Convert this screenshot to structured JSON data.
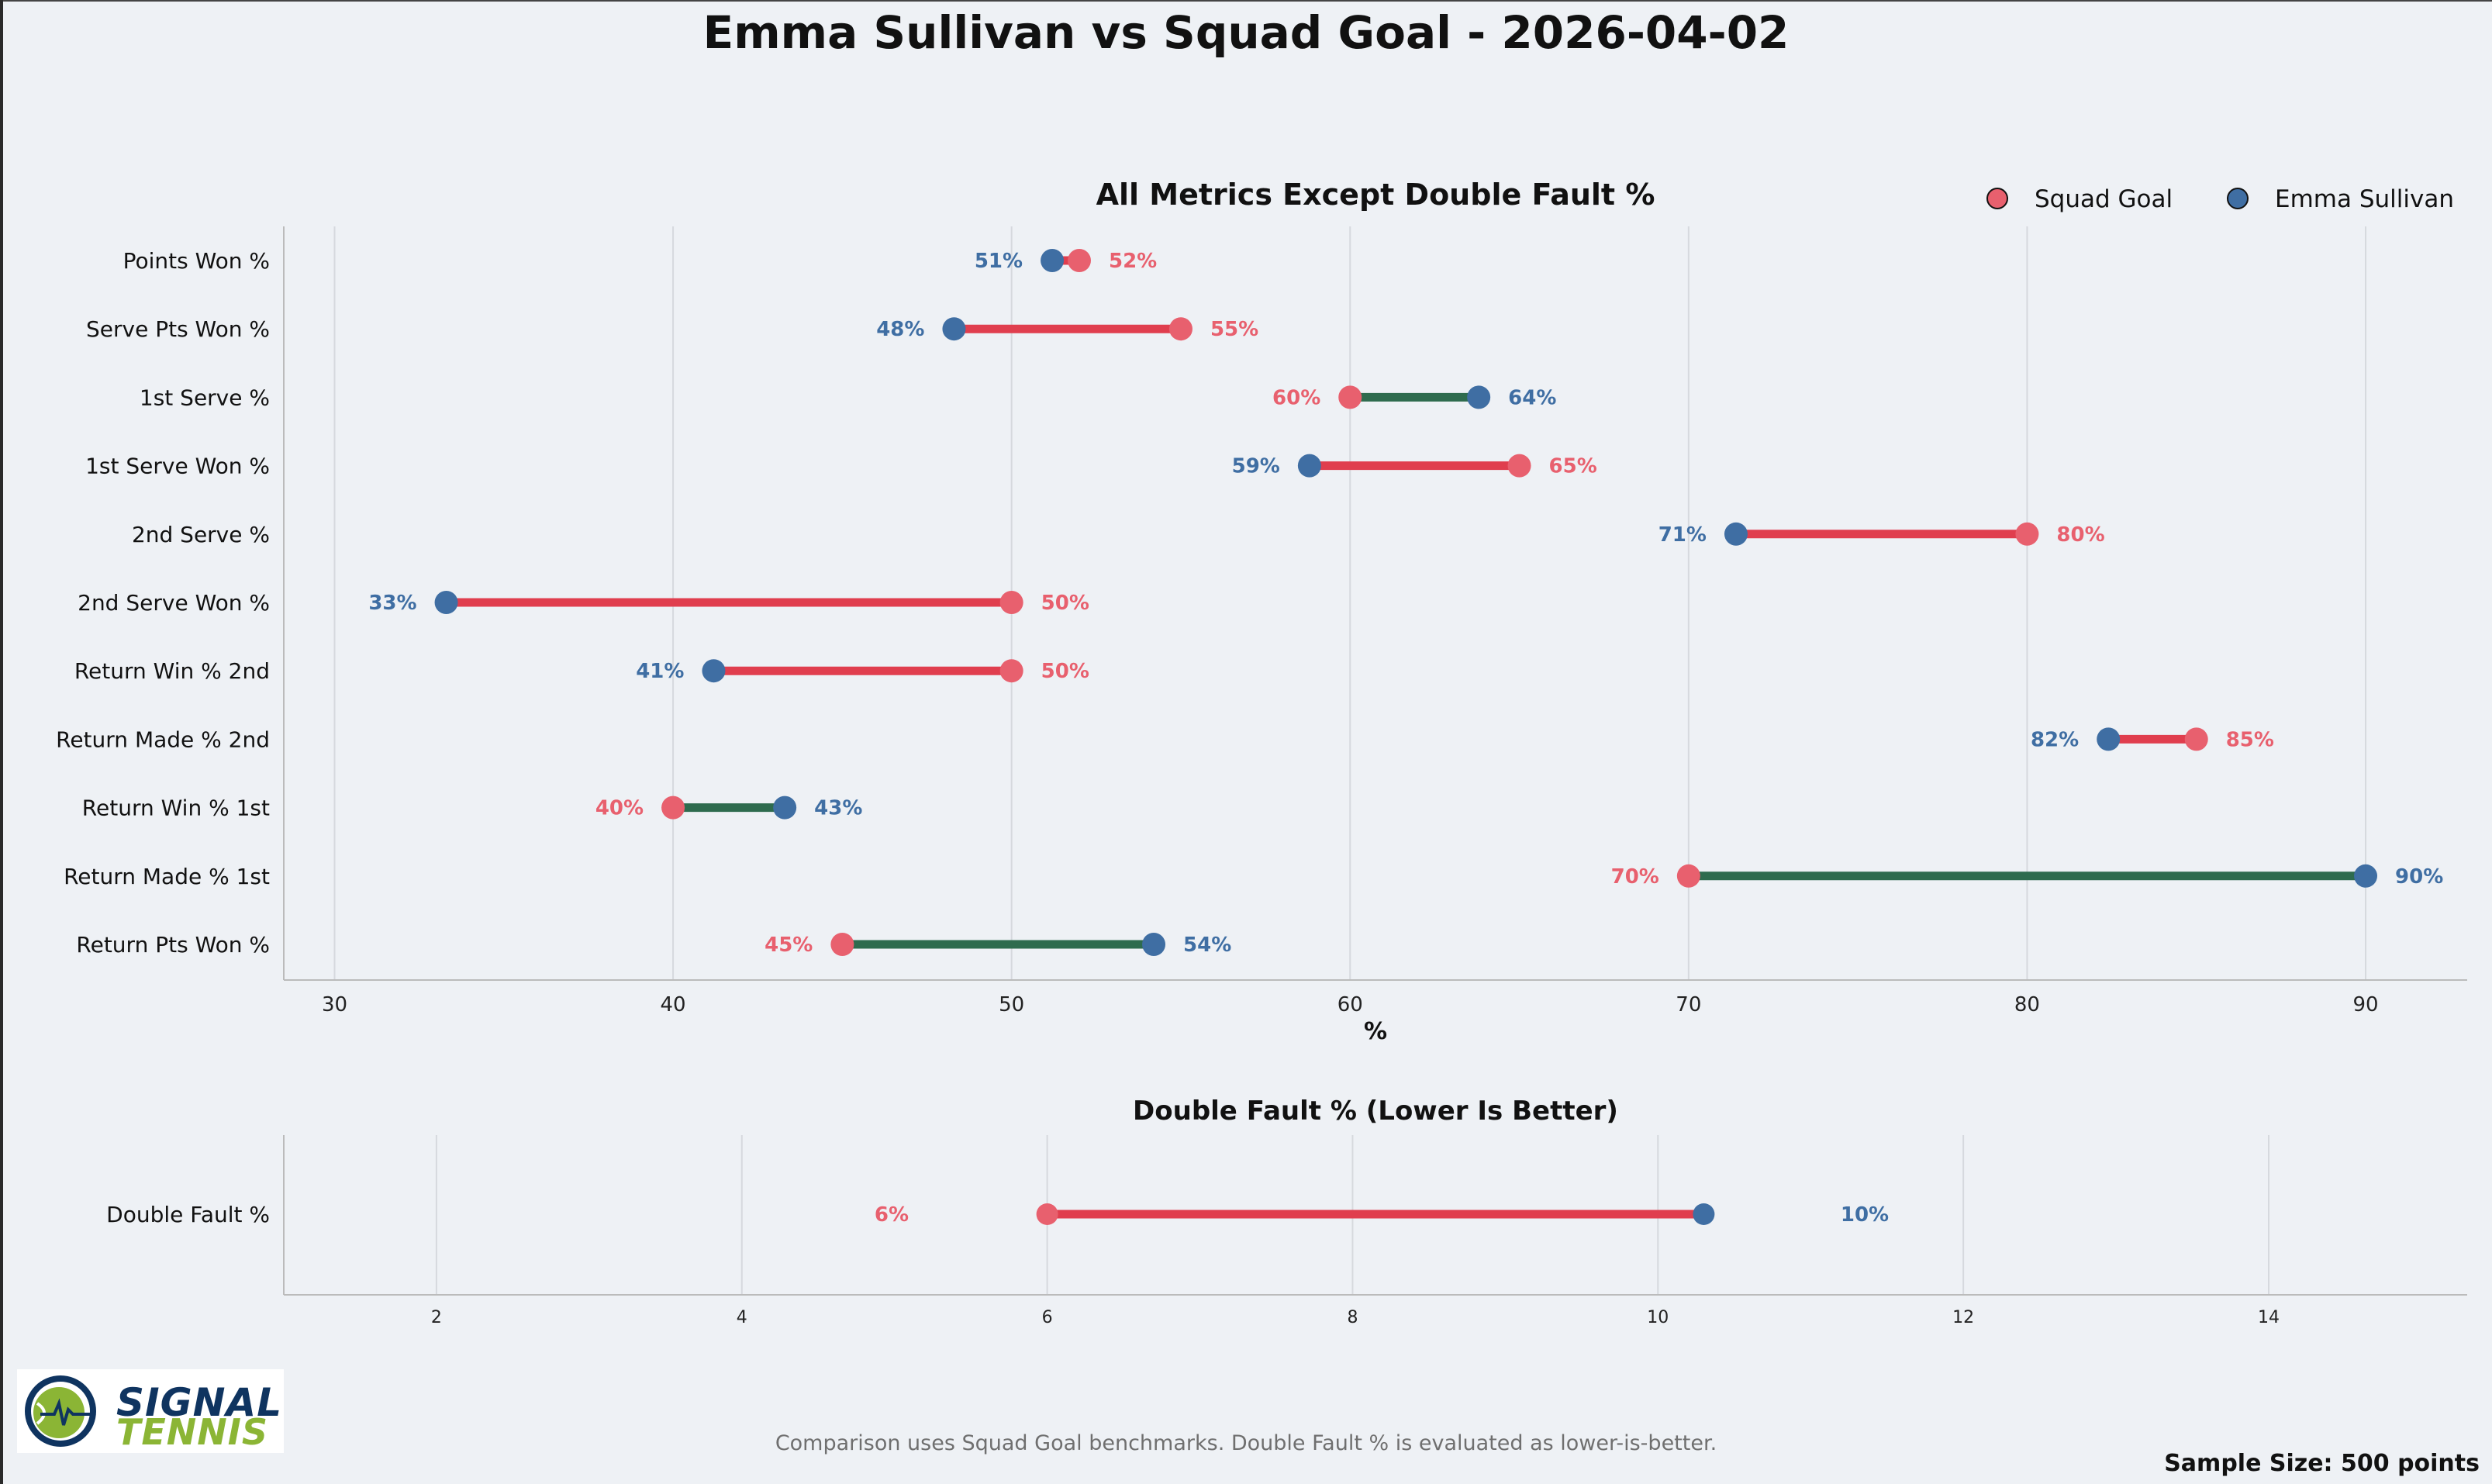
{
  "title": "Emma Sullivan vs Squad Goal - 2026-04-02",
  "footnote": "Comparison uses Squad Goal benchmarks. Double Fault % is evaluated as lower-is-better.",
  "sample_size": "Sample Size: 500 points",
  "logo": {
    "line1": "SIGNAL",
    "line2": "TENNIS"
  },
  "colors": {
    "goal": "#e8606e",
    "player": "#3f6ea3",
    "worse": "#e03e4e",
    "better": "#2e6b4e",
    "grid": "#d6d9de",
    "axis": "#bbbbbb"
  },
  "legend": [
    {
      "name": "Squad Goal",
      "color": "#e8606e"
    },
    {
      "name": "Emma Sullivan",
      "color": "#3f6ea3"
    }
  ],
  "chart_data": [
    {
      "type": "dumbbell",
      "title": "All Metrics Except Double Fault %",
      "xlabel": "%",
      "xlim": [
        28.5,
        93
      ],
      "xticks": [
        30,
        40,
        50,
        60,
        70,
        80,
        90
      ],
      "grid": true,
      "legend_position": "top-right",
      "series": [
        {
          "name": "Squad Goal",
          "color": "#e8606e"
        },
        {
          "name": "Emma Sullivan",
          "color": "#3f6ea3"
        }
      ],
      "categories": [
        "Points Won %",
        "Serve Pts Won %",
        "1st Serve %",
        "1st Serve Won %",
        "2nd Serve %",
        "2nd Serve Won %",
        "Return Win % 2nd",
        "Return Made % 2nd",
        "Return Win % 1st",
        "Return Made % 1st",
        "Return Pts Won %"
      ],
      "rows": [
        {
          "label": "Points Won %",
          "goal": 52,
          "player": 51.2,
          "goal_label": "52%",
          "player_label": "51%"
        },
        {
          "label": "Serve Pts Won %",
          "goal": 55,
          "player": 48.3,
          "goal_label": "55%",
          "player_label": "48%"
        },
        {
          "label": "1st Serve %",
          "goal": 60,
          "player": 63.8,
          "goal_label": "60%",
          "player_label": "64%"
        },
        {
          "label": "1st Serve Won %",
          "goal": 65,
          "player": 58.8,
          "goal_label": "65%",
          "player_label": "59%"
        },
        {
          "label": "2nd Serve %",
          "goal": 80,
          "player": 71.4,
          "goal_label": "80%",
          "player_label": "71%"
        },
        {
          "label": "2nd Serve Won %",
          "goal": 50,
          "player": 33.3,
          "goal_label": "50%",
          "player_label": "33%"
        },
        {
          "label": "Return Win % 2nd",
          "goal": 50,
          "player": 41.2,
          "goal_label": "50%",
          "player_label": "41%"
        },
        {
          "label": "Return Made % 2nd",
          "goal": 85,
          "player": 82.4,
          "goal_label": "85%",
          "player_label": "82%"
        },
        {
          "label": "Return Win % 1st",
          "goal": 40,
          "player": 43.3,
          "goal_label": "40%",
          "player_label": "43%"
        },
        {
          "label": "Return Made % 1st",
          "goal": 70,
          "player": 90,
          "goal_label": "70%",
          "player_label": "90%"
        },
        {
          "label": "Return Pts Won %",
          "goal": 45,
          "player": 54.2,
          "goal_label": "45%",
          "player_label": "54%"
        }
      ]
    },
    {
      "type": "dumbbell",
      "title": "Double Fault % (Lower Is Better)",
      "xlabel": "",
      "xlim": [
        1,
        15.3
      ],
      "xticks": [
        2,
        4,
        6,
        8,
        10,
        12,
        14
      ],
      "grid": true,
      "series": [
        {
          "name": "Squad Goal",
          "color": "#e8606e"
        },
        {
          "name": "Emma Sullivan",
          "color": "#3f6ea3"
        }
      ],
      "categories": [
        "Double Fault %"
      ],
      "rows": [
        {
          "label": "Double Fault %",
          "goal": 6,
          "player": 10.3,
          "goal_label": "6%",
          "player_label": "10%"
        }
      ]
    }
  ]
}
